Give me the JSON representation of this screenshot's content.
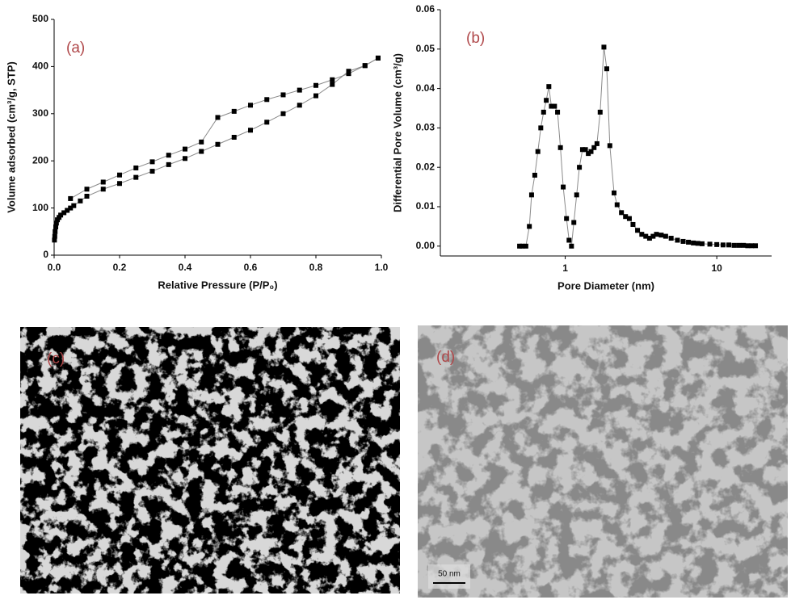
{
  "chart_data": [
    {
      "type": "scatter",
      "annotation": "(a)",
      "x_label": "Relative Pressure (P/P₀)",
      "y_label": "Volume adsorbed (cm³/g, STP)",
      "xlim": [
        0,
        1
      ],
      "ylim": [
        0,
        500
      ],
      "xticks": [
        {
          "value": 0,
          "label": "0.0"
        },
        0.2,
        0.4,
        0.6,
        0.8,
        {
          "value": 1,
          "label": "1.0"
        }
      ],
      "yticks": [
        0,
        100,
        200,
        300,
        400,
        500
      ],
      "line_color": "#8a8a8a",
      "marker": "square",
      "series": [
        {
          "color": "#000000",
          "x": [
            0.001,
            0.002,
            0.003,
            0.005,
            0.007,
            0.01,
            0.015,
            0.02,
            0.03,
            0.04,
            0.05,
            0.06,
            0.08,
            0.1,
            0.15,
            0.2,
            0.25,
            0.3,
            0.35,
            0.4,
            0.45,
            0.5,
            0.55,
            0.6,
            0.65,
            0.7,
            0.75,
            0.8,
            0.85,
            0.9,
            0.95,
            0.99
          ],
          "values": [
            32,
            40,
            50,
            60,
            68,
            75,
            80,
            85,
            90,
            95,
            100,
            105,
            115,
            125,
            140,
            152,
            165,
            178,
            192,
            205,
            220,
            235,
            250,
            265,
            282,
            300,
            318,
            338,
            362,
            390,
            402,
            418
          ]
        },
        {
          "color": "#000000",
          "x": [
            0.99,
            0.95,
            0.9,
            0.85,
            0.8,
            0.75,
            0.7,
            0.65,
            0.6,
            0.55,
            0.5,
            0.45,
            0.4,
            0.35,
            0.3,
            0.25,
            0.2,
            0.15,
            0.1,
            0.05
          ],
          "values": [
            418,
            402,
            385,
            372,
            360,
            350,
            340,
            330,
            318,
            305,
            292,
            240,
            225,
            212,
            198,
            185,
            170,
            155,
            140,
            120
          ]
        }
      ]
    },
    {
      "type": "scatter",
      "annotation": "(b)",
      "x_label": "Pore Diameter (nm)",
      "y_label": "Differential Pore Volume (cm³/g)",
      "xscale": "log",
      "xlim": [
        0.15,
        23
      ],
      "ylim": [
        -0.0025,
        0.06
      ],
      "xticks": [
        1,
        10
      ],
      "yticks": [
        {
          "value": 0,
          "label": "0.00"
        },
        0.01,
        0.02,
        0.03,
        0.04,
        0.05,
        0.06
      ],
      "line_color": "#8a8a8a",
      "marker": "square",
      "series": [
        {
          "color": "#000000",
          "x": [
            0.5,
            0.52,
            0.55,
            0.58,
            0.6,
            0.63,
            0.66,
            0.69,
            0.72,
            0.75,
            0.78,
            0.81,
            0.85,
            0.89,
            0.93,
            0.97,
            1.02,
            1.06,
            1.1,
            1.14,
            1.19,
            1.24,
            1.3,
            1.36,
            1.42,
            1.48,
            1.55,
            1.62,
            1.7,
            1.8,
            1.88,
            1.97,
            2.1,
            2.2,
            2.35,
            2.5,
            2.65,
            2.8,
            3.0,
            3.2,
            3.4,
            3.6,
            3.8,
            4.0,
            4.3,
            4.6,
            5.0,
            5.5,
            6,
            6.5,
            7,
            7.5,
            8,
            9,
            10,
            11,
            12,
            13,
            14,
            15,
            16,
            17,
            18
          ],
          "values": [
            0,
            0,
            0,
            0.005,
            0.013,
            0.018,
            0.024,
            0.03,
            0.034,
            0.037,
            0.0405,
            0.0355,
            0.0355,
            0.034,
            0.025,
            0.015,
            0.007,
            0.0015,
            0,
            0.006,
            0.013,
            0.02,
            0.0245,
            0.0245,
            0.0235,
            0.024,
            0.025,
            0.026,
            0.034,
            0.0505,
            0.045,
            0.0255,
            0.0135,
            0.0105,
            0.0085,
            0.0075,
            0.007,
            0.0055,
            0.004,
            0.003,
            0.0025,
            0.002,
            0.0025,
            0.003,
            0.0028,
            0.0025,
            0.002,
            0.0015,
            0.0012,
            0.001,
            0.0008,
            0.0007,
            0.0006,
            0.0005,
            0.0004,
            0.0003,
            0.0003,
            0.0002,
            0.0002,
            0.0002,
            0.0001,
            0.0001,
            0.0001
          ]
        }
      ]
    }
  ],
  "images": [
    {
      "label": "(c)"
    },
    {
      "label": "(d)",
      "scale_bar": "50 nm"
    }
  ]
}
